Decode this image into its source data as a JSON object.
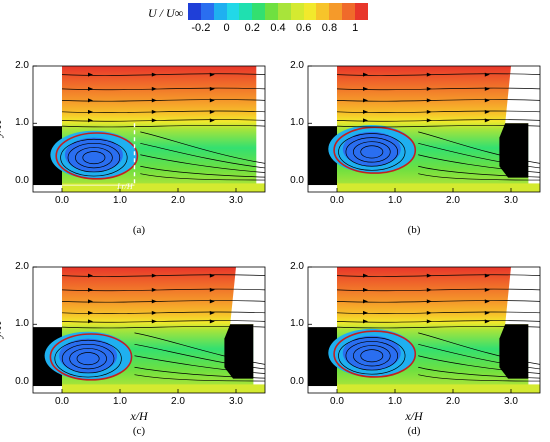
{
  "colorbar": {
    "title": "U / U∞",
    "ticks": [
      {
        "value": -0.2,
        "label": "-0.2"
      },
      {
        "value": 0,
        "label": "0"
      },
      {
        "value": 0.2,
        "label": "0.2"
      },
      {
        "value": 0.4,
        "label": "0.4"
      },
      {
        "value": 0.6,
        "label": "0.6"
      },
      {
        "value": 0.8,
        "label": "0.8"
      },
      {
        "value": 1,
        "label": "1"
      }
    ],
    "range": [
      -0.3,
      1.1
    ],
    "colors": [
      "#1f3fd8",
      "#2a6ef0",
      "#1fb0f0",
      "#22d8e8",
      "#1fe0b0",
      "#33e070",
      "#6fe040",
      "#a8e43a",
      "#d4ea30",
      "#f2e92c",
      "#f7c42a",
      "#f59a2a",
      "#f06a2a",
      "#e8362a"
    ]
  },
  "chart_data": [
    {
      "type": "heatmap",
      "panel_label": "(a)",
      "xlim": [
        -0.5,
        3.5
      ],
      "ylim": [
        -0.2,
        2.0
      ],
      "xticks": [
        "0.0",
        "1.0",
        "2.0",
        "3.0"
      ],
      "yticks": [
        "0.0",
        "1.0",
        "2.0"
      ],
      "xlabel": "",
      "ylabel": "y/H",
      "annotation": "Lr/H",
      "recirculation_center": [
        0.55,
        0.45
      ],
      "downstream_block": false
    },
    {
      "type": "heatmap",
      "panel_label": "(b)",
      "xlim": [
        -0.5,
        3.5
      ],
      "ylim": [
        -0.2,
        2.0
      ],
      "xticks": [
        "0.0",
        "1.0",
        "2.0",
        "3.0"
      ],
      "yticks": [
        "0.0",
        "1.0",
        "2.0"
      ],
      "xlabel": "",
      "ylabel": "",
      "recirculation_center": [
        0.6,
        0.55
      ],
      "downstream_block": true
    },
    {
      "type": "heatmap",
      "panel_label": "(c)",
      "xlim": [
        -0.5,
        3.5
      ],
      "ylim": [
        -0.2,
        2.0
      ],
      "xticks": [
        "0.0",
        "1.0",
        "2.0",
        "3.0"
      ],
      "yticks": [
        "0.0",
        "1.0",
        "2.0"
      ],
      "xlabel": "x/H",
      "ylabel": "y/H",
      "recirculation_center": [
        0.45,
        0.45
      ],
      "downstream_block": true
    },
    {
      "type": "heatmap",
      "panel_label": "(d)",
      "xlim": [
        -0.5,
        3.5
      ],
      "ylim": [
        -0.2,
        2.0
      ],
      "xticks": [
        "0.0",
        "1.0",
        "2.0",
        "3.0"
      ],
      "yticks": [
        "0.0",
        "1.0",
        "2.0"
      ],
      "xlabel": "x/H",
      "ylabel": "",
      "recirculation_center": [
        0.6,
        0.5
      ],
      "downstream_block": true
    }
  ]
}
